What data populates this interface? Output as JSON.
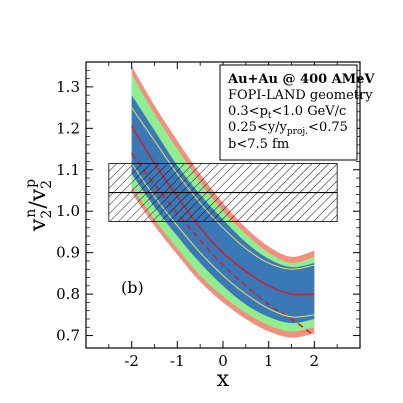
{
  "chart_data": {
    "type": "line",
    "xlabel": "x",
    "ylabel_main": "v",
    "ylabel_num_sub": "2",
    "ylabel_num_sup": "n",
    "ylabel_slash": "/v",
    "ylabel_den_sub": "2",
    "ylabel_den_sup": "p",
    "xlim": [
      -3,
      3
    ],
    "ylim": [
      0.67,
      1.36
    ],
    "x_ticks": [
      -2,
      -1,
      0,
      1,
      2
    ],
    "y_ticks": [
      0.7,
      0.8,
      0.9,
      1.0,
      1.1,
      1.2,
      1.3
    ],
    "x_tick_labels": [
      "-2",
      "-1",
      "0",
      "1",
      "2"
    ],
    "y_tick_labels": [
      "0.7",
      "0.8",
      "0.9",
      "1.0",
      "1.1",
      "1.2",
      "1.3"
    ],
    "panel_label": "(b)",
    "legend_lines": [
      "Au+Au @ 400 AMeV",
      "FOPI-LAND geometry",
      "0.3<p",
      "0.25<y/y",
      "b<7.5 fm"
    ],
    "legend_pt_sub": "t",
    "legend_pt_rest": "<1.0 GeV/c",
    "legend_y_sub": "proj.",
    "legend_y_rest": "<0.75",
    "x_grid": [
      -2,
      -1.5,
      -1,
      -0.5,
      0,
      0.5,
      1,
      1.5,
      2
    ],
    "bands": [
      {
        "name": "outer",
        "color": "#f58e7e",
        "upper": [
          1.35,
          1.255,
          1.17,
          1.09,
          1.02,
          0.96,
          0.915,
          0.89,
          0.905
        ],
        "lower": [
          1.045,
          0.965,
          0.895,
          0.83,
          0.78,
          0.74,
          0.71,
          0.695,
          0.705
        ]
      },
      {
        "name": "middle",
        "color": "#90ee90",
        "upper": [
          1.33,
          1.235,
          1.15,
          1.07,
          1.0,
          0.945,
          0.9,
          0.875,
          0.89
        ],
        "lower": [
          1.06,
          0.98,
          0.91,
          0.845,
          0.795,
          0.755,
          0.725,
          0.71,
          0.72
        ]
      },
      {
        "name": "inner",
        "color": "#3b78b8",
        "upper": [
          1.28,
          1.195,
          1.11,
          1.04,
          0.98,
          0.925,
          0.885,
          0.865,
          0.875
        ],
        "lower": [
          1.09,
          1.01,
          0.94,
          0.875,
          0.82,
          0.775,
          0.745,
          0.73,
          0.74
        ]
      }
    ],
    "series": [
      {
        "color": "#c0282d",
        "dash": "none",
        "width": 1.6,
        "y": [
          1.205,
          1.115,
          1.035,
          0.96,
          0.9,
          0.855,
          0.82,
          0.8,
          0.8
        ]
      },
      {
        "color": "#c0282d",
        "dash": "6,4",
        "width": 1.6,
        "y": [
          1.14,
          1.065,
          0.995,
          0.93,
          0.87,
          0.82,
          0.775,
          0.74,
          0.7
        ]
      },
      {
        "color": "#e8e060",
        "dash": "none",
        "width": 1.0,
        "y": [
          1.25,
          1.17,
          1.09,
          1.02,
          0.96,
          0.91,
          0.875,
          0.86,
          0.87
        ]
      },
      {
        "color": "#e8e060",
        "dash": "none",
        "width": 1.0,
        "y": [
          1.115,
          1.035,
          0.965,
          0.9,
          0.845,
          0.8,
          0.765,
          0.745,
          0.75
        ]
      }
    ],
    "hatch_band": {
      "x": [
        -2.5,
        2.5
      ],
      "y": [
        0.975,
        1.115
      ],
      "line_y": 1.045
    }
  }
}
